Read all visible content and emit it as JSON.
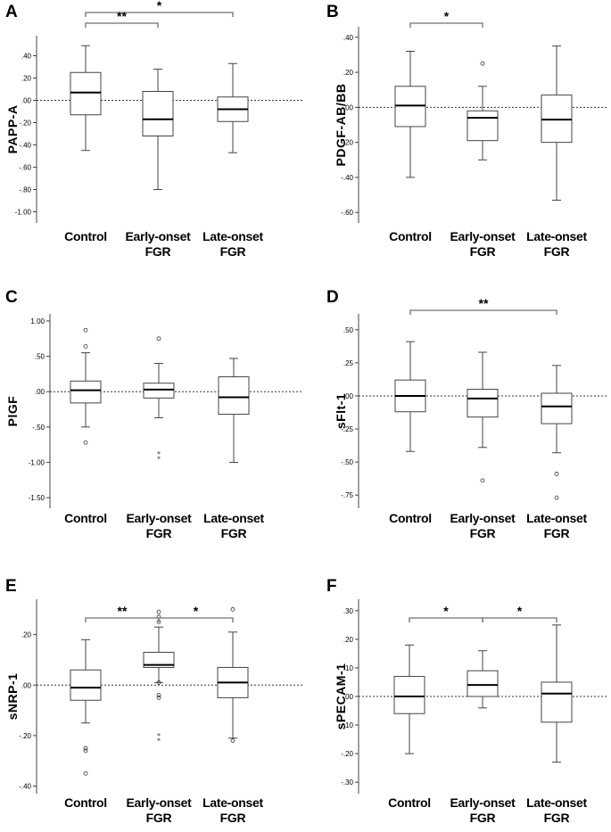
{
  "chart_data": [
    {
      "panel": "A",
      "type": "box",
      "ylabel": "PAPP-A",
      "categories": [
        [
          "Control"
        ],
        [
          "Early-onset",
          "FGR"
        ],
        [
          "Late-onset",
          "FGR"
        ]
      ],
      "ylim": [
        -1.1,
        0.58
      ],
      "ticks": [
        0.4,
        0.2,
        0.0,
        -0.2,
        -0.4,
        -0.6,
        -0.8,
        -1.0
      ],
      "tick_labels": [
        ".40",
        ".20",
        ".00",
        "-.20",
        "-.40",
        "-.60",
        "-.80",
        "-1.00"
      ],
      "reference_line": 0,
      "boxes": [
        {
          "min": -0.45,
          "q1": -0.13,
          "median": 0.07,
          "q3": 0.25,
          "max": 0.49,
          "outliers": [],
          "extremes": []
        },
        {
          "min": -0.8,
          "q1": -0.32,
          "median": -0.17,
          "q3": 0.08,
          "max": 0.28,
          "outliers": [],
          "extremes": []
        },
        {
          "min": -0.47,
          "q1": -0.19,
          "median": -0.08,
          "q3": 0.03,
          "max": 0.33,
          "outliers": [],
          "extremes": []
        }
      ],
      "significance": [
        {
          "from": 0,
          "to": 2,
          "label": "*"
        },
        {
          "from": 0,
          "to": 1,
          "label": "**"
        }
      ]
    },
    {
      "panel": "B",
      "type": "box",
      "ylabel": "PDGF-AB/BB",
      "categories": [
        [
          "Control"
        ],
        [
          "Early-onset",
          "FGR"
        ],
        [
          "Late-onset",
          "FGR"
        ]
      ],
      "ylim": [
        -0.66,
        0.46
      ],
      "ticks": [
        0.4,
        0.2,
        0.0,
        -0.2,
        -0.4,
        -0.6
      ],
      "tick_labels": [
        ".40",
        ".20",
        ".00",
        "-.20",
        "-.40",
        "-.60"
      ],
      "reference_line": 0,
      "boxes": [
        {
          "min": -0.4,
          "q1": -0.11,
          "median": 0.01,
          "q3": 0.12,
          "max": 0.32,
          "outliers": [],
          "extremes": []
        },
        {
          "min": -0.3,
          "q1": -0.19,
          "median": -0.06,
          "q3": -0.02,
          "max": 0.12,
          "outliers": [
            0.25
          ],
          "extremes": []
        },
        {
          "min": -0.53,
          "q1": -0.2,
          "median": -0.07,
          "q3": 0.07,
          "max": 0.35,
          "outliers": [],
          "extremes": []
        }
      ],
      "significance": [
        {
          "from": 0,
          "to": 1,
          "label": "*"
        }
      ]
    },
    {
      "panel": "C",
      "type": "box",
      "ylabel": "PlGF",
      "categories": [
        [
          "Control"
        ],
        [
          "Early-onset",
          "FGR"
        ],
        [
          "Late-onset",
          "FGR"
        ]
      ],
      "ylim": [
        -1.65,
        1.1
      ],
      "ticks": [
        1.0,
        0.5,
        0.0,
        -0.5,
        -1.0,
        -1.5
      ],
      "tick_labels": [
        "1.00",
        ".50",
        ".00",
        "-.50",
        "-1.00",
        "-1.50"
      ],
      "reference_line": 0,
      "boxes": [
        {
          "min": -0.5,
          "q1": -0.16,
          "median": 0.02,
          "q3": 0.15,
          "max": 0.55,
          "outliers": [
            0.87,
            0.64,
            -0.72
          ],
          "extremes": []
        },
        {
          "min": -0.37,
          "q1": -0.09,
          "median": 0.03,
          "q3": 0.12,
          "max": 0.4,
          "outliers": [
            0.75
          ],
          "extremes": [
            -0.88,
            -0.95
          ]
        },
        {
          "min": -1.0,
          "q1": -0.32,
          "median": -0.08,
          "q3": 0.21,
          "max": 0.47,
          "outliers": [],
          "extremes": []
        }
      ],
      "significance": []
    },
    {
      "panel": "D",
      "type": "box",
      "ylabel": "sFlt-1",
      "categories": [
        [
          "Control"
        ],
        [
          "Early-onset",
          "FGR"
        ],
        [
          "Late-onset",
          "FGR"
        ]
      ],
      "ylim": [
        -0.85,
        0.62
      ],
      "ticks": [
        0.5,
        0.25,
        0.0,
        -0.25,
        -0.5,
        -0.75
      ],
      "tick_labels": [
        ".50",
        ".25",
        ".00",
        "-.25",
        "-.50",
        "-.75"
      ],
      "reference_line": 0,
      "boxes": [
        {
          "min": -0.42,
          "q1": -0.12,
          "median": 0.0,
          "q3": 0.12,
          "max": 0.41,
          "outliers": [],
          "extremes": []
        },
        {
          "min": -0.39,
          "q1": -0.16,
          "median": -0.02,
          "q3": 0.05,
          "max": 0.33,
          "outliers": [
            -0.64
          ],
          "extremes": []
        },
        {
          "min": -0.43,
          "q1": -0.21,
          "median": -0.08,
          "q3": 0.02,
          "max": 0.23,
          "outliers": [
            -0.59,
            -0.77
          ],
          "extremes": []
        }
      ],
      "significance": [
        {
          "from": 0,
          "to": 2,
          "label": "**"
        }
      ]
    },
    {
      "panel": "E",
      "type": "box",
      "ylabel": "sNRP-1",
      "categories": [
        [
          "Control"
        ],
        [
          "Early-onset",
          "FGR"
        ],
        [
          "Late-onset",
          "FGR"
        ]
      ],
      "ylim": [
        -0.43,
        0.34
      ],
      "ticks": [
        0.2,
        0.0,
        -0.2,
        -0.4
      ],
      "tick_labels": [
        ".20",
        ".00",
        "-.20",
        "-.40"
      ],
      "reference_line": 0,
      "boxes": [
        {
          "min": -0.15,
          "q1": -0.06,
          "median": -0.01,
          "q3": 0.06,
          "max": 0.18,
          "outliers": [
            -0.25,
            -0.26,
            -0.35
          ],
          "extremes": []
        },
        {
          "min": 0.01,
          "q1": 0.07,
          "median": 0.08,
          "q3": 0.13,
          "max": 0.23,
          "outliers": [
            0.29,
            0.27,
            0.25,
            0.01,
            -0.04,
            -0.05
          ],
          "extremes": [
            -0.2,
            -0.22
          ]
        },
        {
          "min": -0.21,
          "q1": -0.05,
          "median": 0.01,
          "q3": 0.07,
          "max": 0.21,
          "outliers": [
            0.3,
            -0.22
          ],
          "extremes": []
        }
      ],
      "significance": [
        {
          "from": 0,
          "to": 1,
          "label": "**"
        },
        {
          "from": 1,
          "to": 2,
          "label": "*"
        }
      ]
    },
    {
      "panel": "F",
      "type": "box",
      "ylabel": "sPECAM-1",
      "categories": [
        [
          "Control"
        ],
        [
          "Early-onset",
          "FGR"
        ],
        [
          "Late-onset",
          "FGR"
        ]
      ],
      "ylim": [
        -0.34,
        0.34
      ],
      "ticks": [
        0.3,
        0.2,
        0.1,
        0.0,
        -0.1,
        -0.2,
        -0.3
      ],
      "tick_labels": [
        ".30",
        ".20",
        ".10",
        ".00",
        "-.10",
        "-.20",
        "-.30"
      ],
      "reference_line": 0,
      "boxes": [
        {
          "min": -0.2,
          "q1": -0.06,
          "median": 0.0,
          "q3": 0.07,
          "max": 0.18,
          "outliers": [],
          "extremes": []
        },
        {
          "min": -0.04,
          "q1": 0.0,
          "median": 0.04,
          "q3": 0.09,
          "max": 0.16,
          "outliers": [],
          "extremes": []
        },
        {
          "min": -0.23,
          "q1": -0.09,
          "median": 0.01,
          "q3": 0.05,
          "max": 0.25,
          "outliers": [],
          "extremes": []
        }
      ],
      "significance": [
        {
          "from": 0,
          "to": 1,
          "label": "*"
        },
        {
          "from": 1,
          "to": 2,
          "label": "*"
        }
      ]
    }
  ]
}
